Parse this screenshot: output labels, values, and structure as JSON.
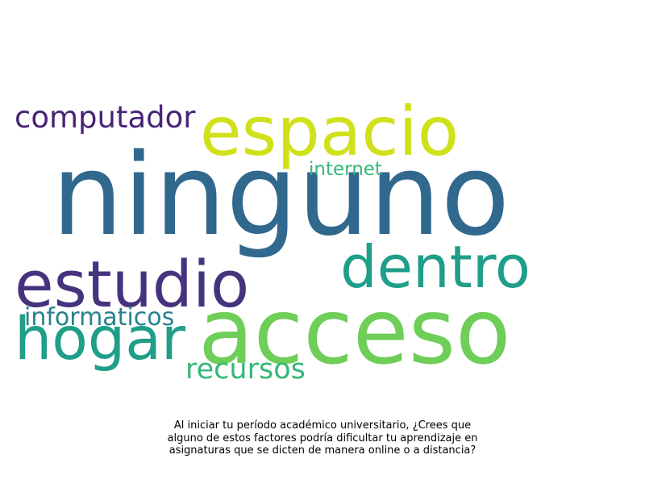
{
  "words": {
    "ninguno": {
      "text": "ninguno",
      "color": "#31688e"
    },
    "espacio": {
      "text": "espacio",
      "color": "#d0e11c"
    },
    "acceso": {
      "text": "acceso",
      "color": "#6ece58"
    },
    "estudio": {
      "text": "estudio",
      "color": "#46337e"
    },
    "dentro": {
      "text": "dentro",
      "color": "#1f9e89"
    },
    "hogar": {
      "text": "hogar",
      "color": "#1f9e89"
    },
    "computador": {
      "text": "computador",
      "color": "#482475"
    },
    "informaticos": {
      "text": "informaticos",
      "color": "#26828e"
    },
    "recursos": {
      "text": "recursos",
      "color": "#35b779"
    },
    "internet": {
      "text": "internet",
      "color": "#35b779"
    }
  },
  "caption": "Al iniciar tu período académico universitario, ¿Crees que\nalguno de estos factores podría dificultar tu aprendizaje en\nasignaturas que se dicten de manera online o a distancia?"
}
